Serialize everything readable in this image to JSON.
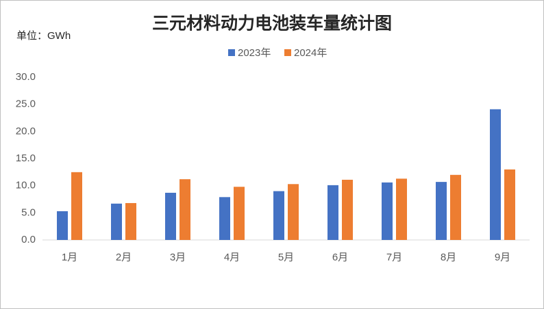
{
  "chart_data": {
    "type": "bar",
    "title": "三元材料动力电池装车量统计图",
    "unit_label": "单位：GWh",
    "categories": [
      "1月",
      "2月",
      "3月",
      "4月",
      "5月",
      "6月",
      "7月",
      "8月",
      "9月"
    ],
    "series": [
      {
        "name": "2023年",
        "color": "#4472c4",
        "values": [
          5.3,
          6.7,
          8.7,
          7.9,
          9.0,
          10.1,
          10.6,
          10.7,
          24.1
        ]
      },
      {
        "name": "2024年",
        "color": "#ed7d31",
        "values": [
          12.5,
          6.8,
          11.2,
          9.8,
          10.3,
          11.1,
          11.3,
          12.0,
          13.0
        ]
      }
    ],
    "ylim": [
      0,
      30
    ],
    "yticks": [
      {
        "value": 0,
        "label": "0.0"
      },
      {
        "value": 5,
        "label": "5.0"
      },
      {
        "value": 10,
        "label": "10.0"
      },
      {
        "value": 15,
        "label": "15.0"
      },
      {
        "value": 20,
        "label": "20.0"
      },
      {
        "value": 25,
        "label": "25.0"
      },
      {
        "value": 30,
        "label": "30.0"
      }
    ],
    "grid": false
  }
}
